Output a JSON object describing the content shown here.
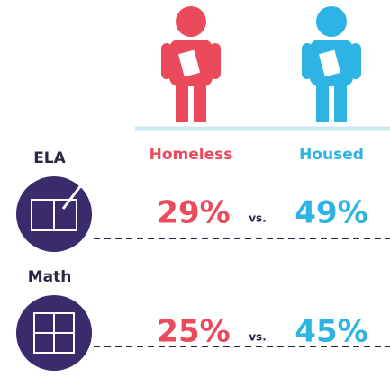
{
  "groups": [
    {
      "label": "Homeless",
      "color": "#ea4a5a"
    },
    {
      "label": "Housed",
      "color": "#2db3e4"
    }
  ],
  "subjects": [
    {
      "label": "ELA",
      "values": [
        "29%",
        "49%"
      ],
      "separator": "vs."
    },
    {
      "label": "Math",
      "values": [
        "25%",
        "45%"
      ],
      "separator": "vs."
    }
  ]
}
